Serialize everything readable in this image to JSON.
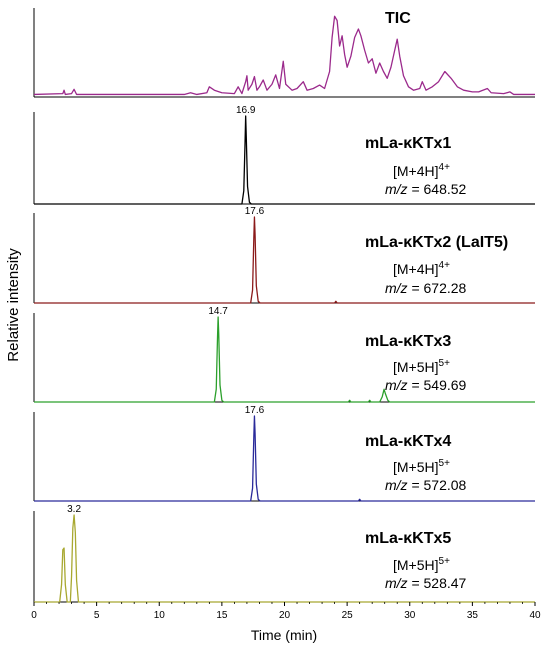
{
  "chart_data": {
    "type": "line",
    "xlabel": "Time (min)",
    "ylabel": "Relative intensity",
    "xlim": [
      0,
      40
    ],
    "xticks": [
      0,
      5,
      10,
      15,
      20,
      25,
      30,
      35,
      40
    ],
    "panels": [
      {
        "title": "TIC",
        "ion": "",
        "charge": "",
        "mz_prefix": "",
        "mz_eq": "",
        "mz_value": "",
        "color": "#9b2a8c",
        "peak_label": "",
        "peak_label_x": null,
        "points": [
          [
            0,
            0.03
          ],
          [
            2.3,
            0.04
          ],
          [
            2.4,
            0.08
          ],
          [
            2.5,
            0.03
          ],
          [
            3.0,
            0.04
          ],
          [
            3.2,
            0.09
          ],
          [
            3.4,
            0.03
          ],
          [
            12,
            0.03
          ],
          [
            12.5,
            0.05
          ],
          [
            13,
            0.03
          ],
          [
            13.8,
            0.05
          ],
          [
            14,
            0.12
          ],
          [
            14.4,
            0.08
          ],
          [
            15,
            0.05
          ],
          [
            16,
            0.04
          ],
          [
            16.3,
            0.12
          ],
          [
            16.6,
            0.04
          ],
          [
            16.9,
            0.18
          ],
          [
            17.0,
            0.25
          ],
          [
            17.1,
            0.08
          ],
          [
            17.4,
            0.15
          ],
          [
            17.6,
            0.24
          ],
          [
            17.8,
            0.08
          ],
          [
            18,
            0.12
          ],
          [
            18.3,
            0.2
          ],
          [
            18.6,
            0.08
          ],
          [
            19,
            0.15
          ],
          [
            19.3,
            0.26
          ],
          [
            19.6,
            0.1
          ],
          [
            19.9,
            0.42
          ],
          [
            20.1,
            0.15
          ],
          [
            20.6,
            0.08
          ],
          [
            21,
            0.1
          ],
          [
            21.5,
            0.18
          ],
          [
            21.8,
            0.08
          ],
          [
            22.3,
            0.1
          ],
          [
            22.8,
            0.14
          ],
          [
            23.2,
            0.1
          ],
          [
            23.6,
            0.3
          ],
          [
            23.8,
            0.7
          ],
          [
            24.0,
            0.95
          ],
          [
            24.2,
            0.9
          ],
          [
            24.4,
            0.6
          ],
          [
            24.6,
            0.72
          ],
          [
            24.8,
            0.5
          ],
          [
            25.0,
            0.35
          ],
          [
            25.3,
            0.48
          ],
          [
            25.6,
            0.7
          ],
          [
            25.9,
            0.8
          ],
          [
            26.1,
            0.72
          ],
          [
            26.4,
            0.55
          ],
          [
            26.7,
            0.4
          ],
          [
            27.0,
            0.45
          ],
          [
            27.3,
            0.28
          ],
          [
            27.6,
            0.4
          ],
          [
            27.9,
            0.3
          ],
          [
            28.2,
            0.22
          ],
          [
            28.5,
            0.35
          ],
          [
            28.8,
            0.55
          ],
          [
            29.0,
            0.68
          ],
          [
            29.2,
            0.48
          ],
          [
            29.5,
            0.25
          ],
          [
            29.9,
            0.12
          ],
          [
            30.3,
            0.08
          ],
          [
            30.8,
            0.1
          ],
          [
            31.0,
            0.18
          ],
          [
            31.3,
            0.08
          ],
          [
            31.8,
            0.12
          ],
          [
            32.3,
            0.18
          ],
          [
            32.8,
            0.3
          ],
          [
            33.3,
            0.22
          ],
          [
            33.8,
            0.12
          ],
          [
            34.3,
            0.08
          ],
          [
            35,
            0.06
          ],
          [
            35.5,
            0.06
          ],
          [
            36.2,
            0.1
          ],
          [
            36.5,
            0.05
          ],
          [
            37.5,
            0.04
          ],
          [
            38,
            0.06
          ],
          [
            38.3,
            0.03
          ],
          [
            40,
            0.03
          ]
        ]
      },
      {
        "title": "mLa-κKTx1",
        "ion": "[M+4H]",
        "charge": "4+",
        "mz_prefix": "m/z",
        "mz_eq": "=",
        "mz_value": "648.52",
        "color": "#000000",
        "peak_label": "16.9",
        "peak_label_x": 16.9,
        "points": [
          [
            0,
            0
          ],
          [
            16.6,
            0
          ],
          [
            16.75,
            0.15
          ],
          [
            16.85,
            0.7
          ],
          [
            16.9,
            1.0
          ],
          [
            16.95,
            0.75
          ],
          [
            17.05,
            0.2
          ],
          [
            17.2,
            0.02
          ],
          [
            17.35,
            0
          ],
          [
            40,
            0
          ]
        ]
      },
      {
        "title": "mLa-κKTx2 (LaIT5)",
        "ion": "[M+4H]",
        "charge": "4+",
        "mz_prefix": "m/z",
        "mz_eq": "=",
        "mz_value": "672.28",
        "color": "#8b1a1a",
        "peak_label": "17.6",
        "peak_label_x": 17.6,
        "points": [
          [
            0,
            0
          ],
          [
            17.3,
            0
          ],
          [
            17.45,
            0.15
          ],
          [
            17.55,
            0.75
          ],
          [
            17.6,
            1.0
          ],
          [
            17.65,
            0.8
          ],
          [
            17.75,
            0.2
          ],
          [
            17.9,
            0.02
          ],
          [
            18.05,
            0
          ],
          [
            24.0,
            0
          ],
          [
            24.1,
            0.02
          ],
          [
            24.2,
            0
          ],
          [
            40,
            0
          ]
        ]
      },
      {
        "title": "mLa-κKTx3",
        "ion": "[M+5H]",
        "charge": "5+",
        "mz_prefix": "m/z",
        "mz_eq": "=",
        "mz_value": "549.69",
        "color": "#2ca02c",
        "peak_label": "14.7",
        "peak_label_x": 14.7,
        "points": [
          [
            0,
            0
          ],
          [
            14.4,
            0
          ],
          [
            14.55,
            0.15
          ],
          [
            14.65,
            0.75
          ],
          [
            14.7,
            1.0
          ],
          [
            14.75,
            0.8
          ],
          [
            14.85,
            0.2
          ],
          [
            15.0,
            0.02
          ],
          [
            15.15,
            0
          ],
          [
            25.1,
            0
          ],
          [
            25.2,
            0.02
          ],
          [
            25.3,
            0
          ],
          [
            26.7,
            0
          ],
          [
            26.8,
            0.02
          ],
          [
            26.9,
            0
          ],
          [
            27.6,
            0
          ],
          [
            27.8,
            0.06
          ],
          [
            27.95,
            0.15
          ],
          [
            28.05,
            0.1
          ],
          [
            28.25,
            0.02
          ],
          [
            28.4,
            0
          ],
          [
            40,
            0
          ]
        ]
      },
      {
        "title": "mLa-κKTx4",
        "ion": "[M+5H]",
        "charge": "5+",
        "mz_prefix": "m/z",
        "mz_eq": "=",
        "mz_value": "572.08",
        "color": "#2a2a9a",
        "peak_label": "17.6",
        "peak_label_x": 17.6,
        "points": [
          [
            0,
            0
          ],
          [
            17.3,
            0
          ],
          [
            17.45,
            0.15
          ],
          [
            17.55,
            0.75
          ],
          [
            17.6,
            1.0
          ],
          [
            17.65,
            0.8
          ],
          [
            17.75,
            0.2
          ],
          [
            17.9,
            0.02
          ],
          [
            18.05,
            0
          ],
          [
            25.9,
            0
          ],
          [
            26.0,
            0.02
          ],
          [
            26.1,
            0
          ],
          [
            40,
            0
          ]
        ]
      },
      {
        "title": "mLa-κKTx5",
        "ion": "[M+5H]",
        "charge": "5+",
        "mz_prefix": "m/z",
        "mz_eq": "=",
        "mz_value": "528.47",
        "color": "#a8a830",
        "peak_label": "3.2",
        "peak_label_x": 3.2,
        "points": [
          [
            0,
            0
          ],
          [
            2.05,
            0
          ],
          [
            2.2,
            0.2
          ],
          [
            2.3,
            0.6
          ],
          [
            2.4,
            0.62
          ],
          [
            2.5,
            0.2
          ],
          [
            2.65,
            0
          ],
          [
            2.9,
            0
          ],
          [
            3.0,
            0.3
          ],
          [
            3.1,
            0.85
          ],
          [
            3.2,
            1.0
          ],
          [
            3.3,
            0.8
          ],
          [
            3.4,
            0.25
          ],
          [
            3.55,
            0
          ],
          [
            40,
            0
          ]
        ]
      }
    ]
  }
}
